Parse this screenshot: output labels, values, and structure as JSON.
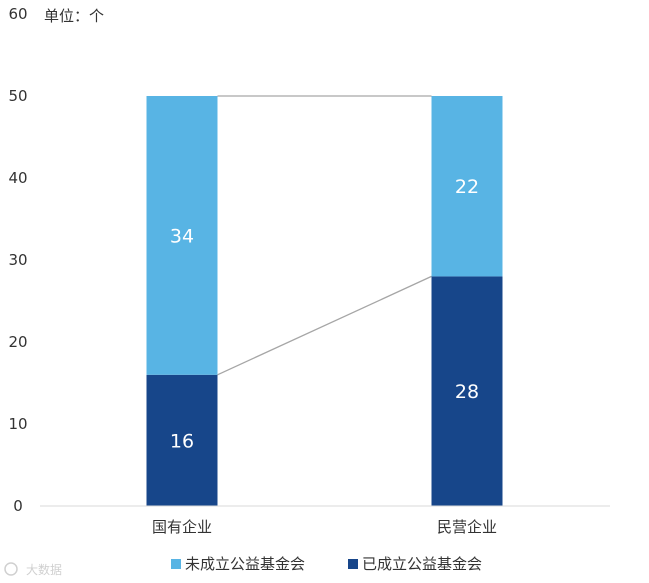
{
  "chart_data": {
    "type": "bar",
    "stacked": true,
    "unit_label": "单位：个",
    "categories": [
      "国有企业",
      "民营企业"
    ],
    "series": [
      {
        "name": "已成立公益基金会",
        "values": [
          16,
          28
        ],
        "color": "#17468a"
      },
      {
        "name": "未成立公益基金会",
        "values": [
          34,
          22
        ],
        "color": "#58b4e4"
      }
    ],
    "ylim": [
      0,
      60
    ],
    "yticks": [
      0,
      10,
      20,
      30,
      40,
      50,
      60
    ],
    "grid": false,
    "legend_position": "bottom",
    "connector_lines": true,
    "connector_color": "#a6a6a6"
  },
  "legend": [
    {
      "label": "未成立公益基金会",
      "color": "#58b4e4"
    },
    {
      "label": "已成立公益基金会",
      "color": "#17468a"
    }
  ],
  "watermark": {
    "text": "大数据"
  }
}
